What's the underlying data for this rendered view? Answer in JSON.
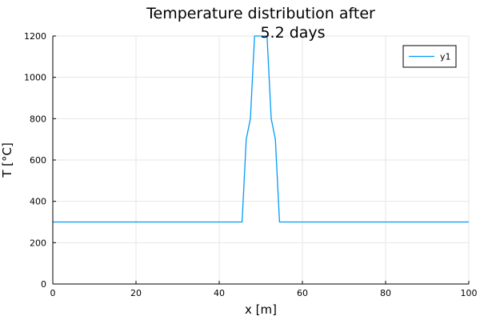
{
  "chart_data": {
    "type": "line",
    "title": [
      "Temperature distribution after",
      "5.2 days"
    ],
    "xlabel": "x [m]",
    "ylabel": "T [°C]",
    "xlim": [
      0,
      100
    ],
    "ylim": [
      0,
      1200
    ],
    "xticks": [
      0,
      20,
      40,
      60,
      80,
      100
    ],
    "yticks": [
      0,
      200,
      400,
      600,
      800,
      1000,
      1200
    ],
    "grid": true,
    "legend_position": "top-right",
    "series": [
      {
        "name": "y1",
        "color": "#009af9",
        "x": [
          0,
          45.5,
          46.5,
          47.5,
          48.5,
          49.5,
          50.5,
          51.5,
          52.5,
          53.5,
          54.5,
          100
        ],
        "y": [
          300,
          300,
          700,
          800,
          1200,
          1200,
          1200,
          1200,
          800,
          700,
          300,
          300
        ]
      }
    ]
  }
}
